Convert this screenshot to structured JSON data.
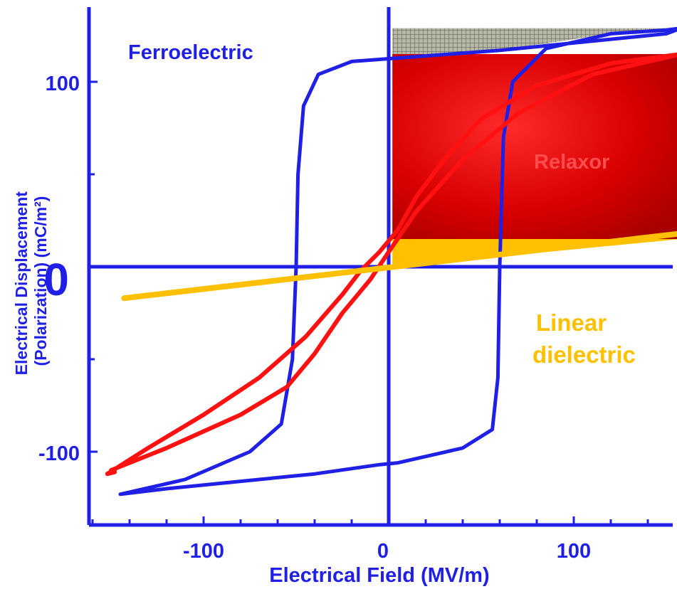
{
  "chart_data": {
    "type": "line",
    "xlabel": "Electrical Field (MV/m)",
    "ylabel": "Electrical Displacement (Polarization) (mC/m²)",
    "xlim": [
      -160,
      160
    ],
    "ylim": [
      -140,
      140
    ],
    "x_ticks": [
      {
        "value": -100,
        "label": "-100"
      },
      {
        "value": 0,
        "label": "0"
      },
      {
        "value": 100,
        "label": "100"
      }
    ],
    "y_ticks": [
      {
        "value": 100,
        "label": "100"
      },
      {
        "value": 0,
        "label": "0"
      },
      {
        "value": -100,
        "label": "-100"
      }
    ],
    "grid": false,
    "series": [
      {
        "name": "Ferroelectric",
        "color": "#1f1fe6",
        "points": [
          [
            -145,
            -123
          ],
          [
            -120,
            -120
          ],
          [
            -80,
            -116
          ],
          [
            -40,
            -112
          ],
          [
            -5,
            -107
          ],
          [
            5,
            -106
          ],
          [
            40,
            -98
          ],
          [
            56,
            -88
          ],
          [
            59,
            -60
          ],
          [
            60,
            0
          ],
          [
            62,
            70
          ],
          [
            67,
            100
          ],
          [
            85,
            118
          ],
          [
            120,
            126
          ],
          [
            150,
            128
          ],
          [
            158,
            129
          ],
          [
            150,
            126
          ],
          [
            110,
            122
          ],
          [
            60,
            117
          ],
          [
            20,
            114
          ],
          [
            -20,
            111
          ],
          [
            -38,
            104
          ],
          [
            -46,
            87
          ],
          [
            -49,
            50
          ],
          [
            -50,
            0
          ],
          [
            -52,
            -50
          ],
          [
            -58,
            -85
          ],
          [
            -75,
            -100
          ],
          [
            -110,
            -115
          ],
          [
            -145,
            -123
          ]
        ]
      },
      {
        "name": "Relaxor",
        "color": "#ff1111",
        "points": [
          [
            -150,
            -110
          ],
          [
            -120,
            -98
          ],
          [
            -80,
            -80
          ],
          [
            -55,
            -65
          ],
          [
            -40,
            -47
          ],
          [
            -25,
            -25
          ],
          [
            -10,
            -7
          ],
          [
            0,
            8
          ],
          [
            15,
            30
          ],
          [
            40,
            58
          ],
          [
            70,
            83
          ],
          [
            110,
            104
          ],
          [
            158,
            115
          ],
          [
            120,
            110
          ],
          [
            80,
            98
          ],
          [
            50,
            80
          ],
          [
            30,
            58
          ],
          [
            15,
            38
          ],
          [
            5,
            20
          ],
          [
            -5,
            8
          ],
          [
            -15,
            -2
          ],
          [
            -25,
            -15
          ],
          [
            -45,
            -38
          ],
          [
            -70,
            -60
          ],
          [
            -100,
            -80
          ],
          [
            -130,
            -98
          ],
          [
            -152,
            -112
          ],
          [
            -148,
            -111
          ]
        ]
      },
      {
        "name": "Linear dielectric",
        "color": "#ffc000",
        "points": [
          [
            -143,
            -17
          ],
          [
            158,
            18
          ]
        ]
      }
    ],
    "annotations": [
      {
        "text": "Ferroelectric",
        "color": "#1f1fe6"
      },
      {
        "text": "Relaxor",
        "color": "#ff4d4d"
      },
      {
        "text": "Linear",
        "color": "#ffc000"
      },
      {
        "text": "dielectric",
        "color": "#ffc000"
      }
    ],
    "shaded_regions": [
      {
        "series": "Ferroelectric",
        "color": "#9a9a8a",
        "pattern": "grid"
      },
      {
        "series": "Relaxor",
        "color": "#cc0000",
        "pattern": "gradient"
      },
      {
        "series": "Linear dielectric",
        "color": "#ffc000",
        "pattern": "solid"
      }
    ]
  }
}
